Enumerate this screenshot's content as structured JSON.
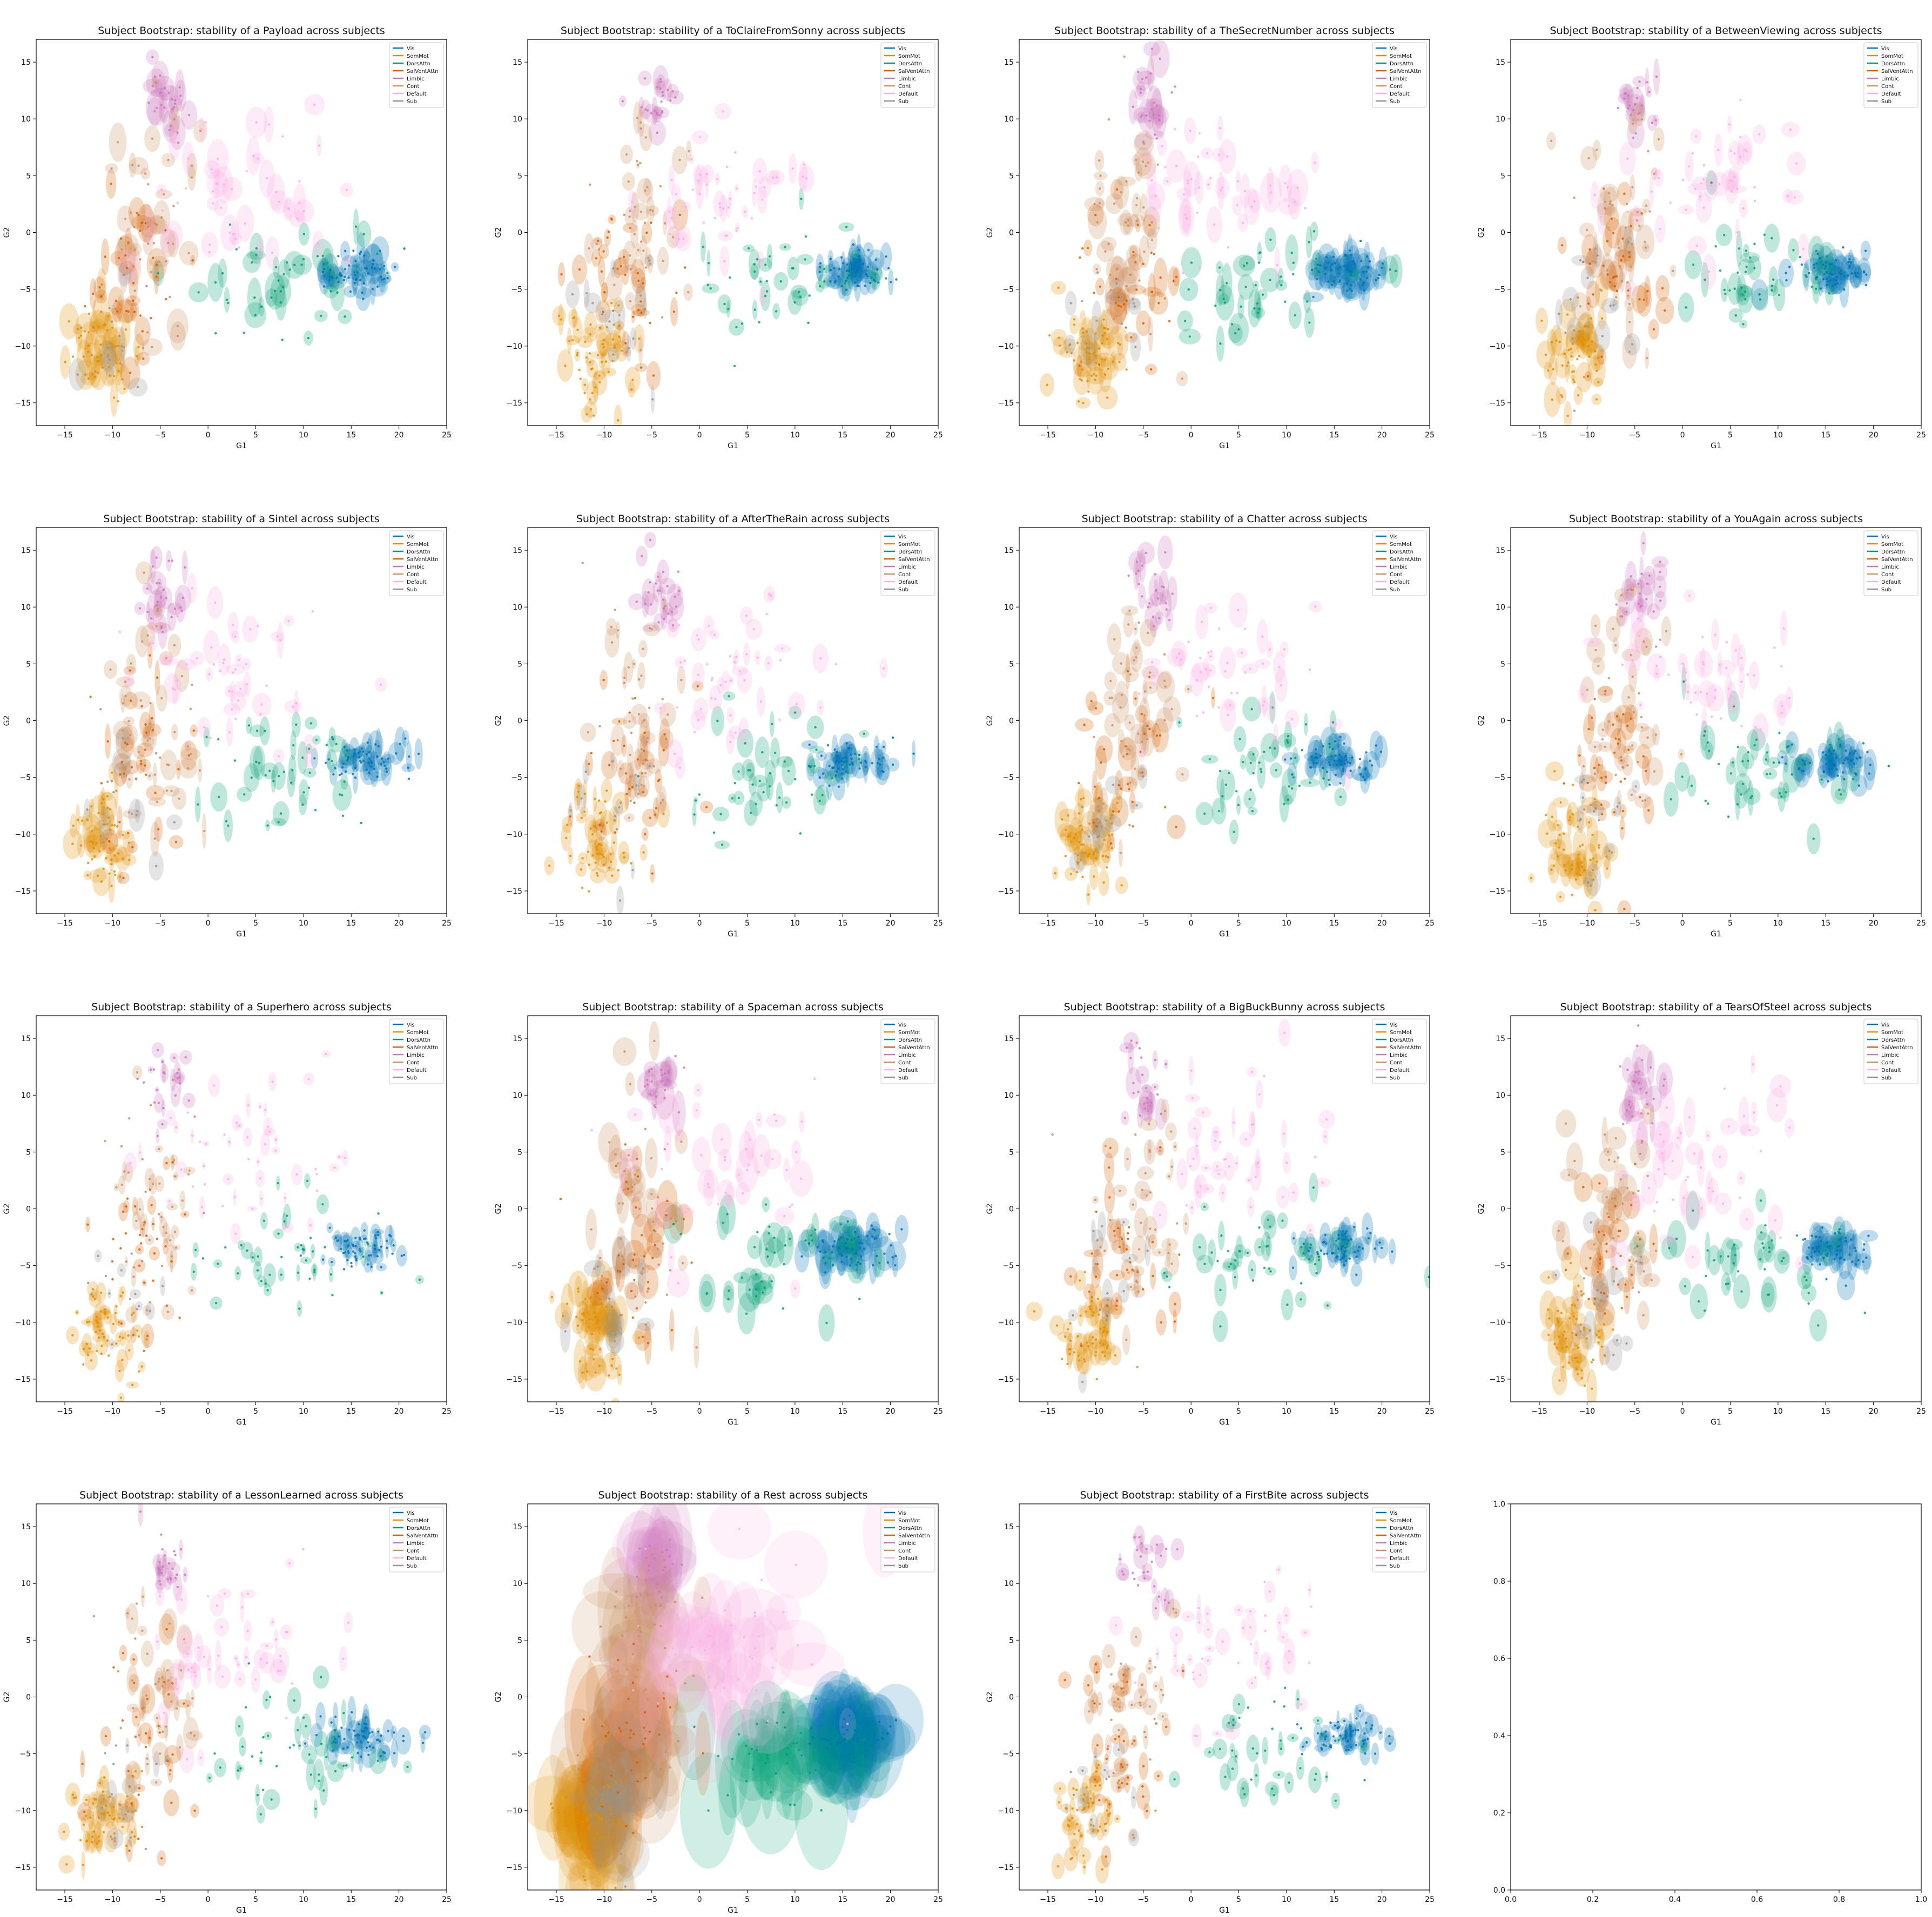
{
  "figure": {
    "title_template": "Subject Bootstrap: stability of a {name} across subjects"
  },
  "chart_data": {
    "type": "scatter",
    "subtitle_note": "15 scatter panels of gradient embeddings (G1 vs G2) with bootstrap uncertainty ellipses, colored by network; final panel empty",
    "xlabel": "G1",
    "ylabel": "G2",
    "xlim": [
      -18,
      25
    ],
    "ylim": [
      -17,
      17
    ],
    "xticks": [
      -15,
      -10,
      -5,
      0,
      5,
      10,
      15,
      20,
      25
    ],
    "yticks": [
      -15,
      -10,
      -5,
      0,
      5,
      10,
      15
    ],
    "legend": {
      "placement": "top-right",
      "entries": [
        "Vis",
        "SomMot",
        "DorsAttn",
        "SalVentAttn",
        "Limbic",
        "Cont",
        "Default",
        "Sub"
      ]
    },
    "network_colors": {
      "Vis": "#0173b2",
      "SomMot": "#de8f05",
      "DorsAttn": "#029e73",
      "SalVentAttn": "#d55e00",
      "Limbic": "#cc78bc",
      "Cont": "#ca9161",
      "Default": "#fbafe4",
      "Sub": "#949494"
    },
    "network_clusters": {
      "Vis": {
        "center": [
          16,
          -3.5
        ],
        "spread": [
          2.2,
          0.9
        ]
      },
      "SomMot": {
        "center": [
          -11,
          -11
        ],
        "spread": [
          1.8,
          2.2
        ]
      },
      "DorsAttn": {
        "center": [
          8,
          -4.5
        ],
        "spread": [
          5,
          2.5
        ]
      },
      "SalVentAttn": {
        "center": [
          -7,
          -4
        ],
        "spread": [
          2.5,
          4
        ]
      },
      "Limbic": {
        "center": [
          -4.5,
          11
        ],
        "spread": [
          1.2,
          1.8
        ]
      },
      "Cont": {
        "center": [
          -6,
          0
        ],
        "spread": [
          2.5,
          5
        ]
      },
      "Default": {
        "center": [
          3,
          4
        ],
        "spread": [
          5,
          3.5
        ]
      },
      "Sub": {
        "center": [
          -9,
          -8
        ],
        "spread": [
          2,
          3
        ]
      }
    },
    "panels": [
      {
        "name": "Payload",
        "ellipse_scale": 1.0
      },
      {
        "name": "ToClaireFromSonny",
        "ellipse_scale": 0.8
      },
      {
        "name": "TheSecretNumber",
        "ellipse_scale": 1.0
      },
      {
        "name": "BetweenViewing",
        "ellipse_scale": 0.9
      },
      {
        "name": "Sintel",
        "ellipse_scale": 0.9
      },
      {
        "name": "AfterTheRain",
        "ellipse_scale": 0.8
      },
      {
        "name": "Chatter",
        "ellipse_scale": 0.9
      },
      {
        "name": "YouAgain",
        "ellipse_scale": 0.9
      },
      {
        "name": "Superhero",
        "ellipse_scale": 0.6
      },
      {
        "name": "Spaceman",
        "ellipse_scale": 1.1
      },
      {
        "name": "BigBuckBunny",
        "ellipse_scale": 0.8
      },
      {
        "name": "TearsOfSteel",
        "ellipse_scale": 1.0
      },
      {
        "name": "LessonLearned",
        "ellipse_scale": 0.8
      },
      {
        "name": "Rest",
        "ellipse_scale": 3.2
      },
      {
        "name": "FirstBite",
        "ellipse_scale": 0.7
      }
    ],
    "empty_panel": {
      "xlim": [
        0.0,
        1.0
      ],
      "ylim": [
        0.0,
        1.0
      ],
      "xticks": [
        "0.0",
        "0.2",
        "0.4",
        "0.6",
        "0.8",
        "1.0"
      ],
      "yticks": [
        "0.0",
        "0.2",
        "0.4",
        "0.6",
        "0.8",
        "1.0"
      ]
    }
  }
}
